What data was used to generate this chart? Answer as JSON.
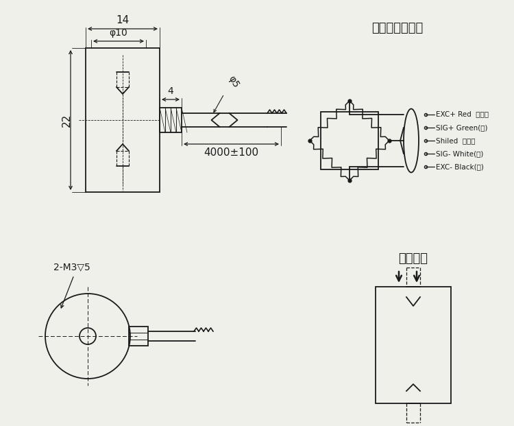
{
  "bg_color": "#f0f0eb",
  "line_color": "#1a1a1a",
  "title_wiring": "压向正输出线序",
  "title_force": "受力方式",
  "label_m3": "2-M3▽5",
  "dim_14": "14",
  "dim_phi10": "φ10",
  "dim_4": "4",
  "dim_phi5": "φ5",
  "dim_22": "22",
  "dim_4000": "4000±100",
  "wire_labels": [
    "EXC+ Red  （红）",
    "SIG+ Green(绻)",
    "Shiled  屏蔽线",
    "SIG- White(白)",
    "EXC- Black(黑)"
  ]
}
